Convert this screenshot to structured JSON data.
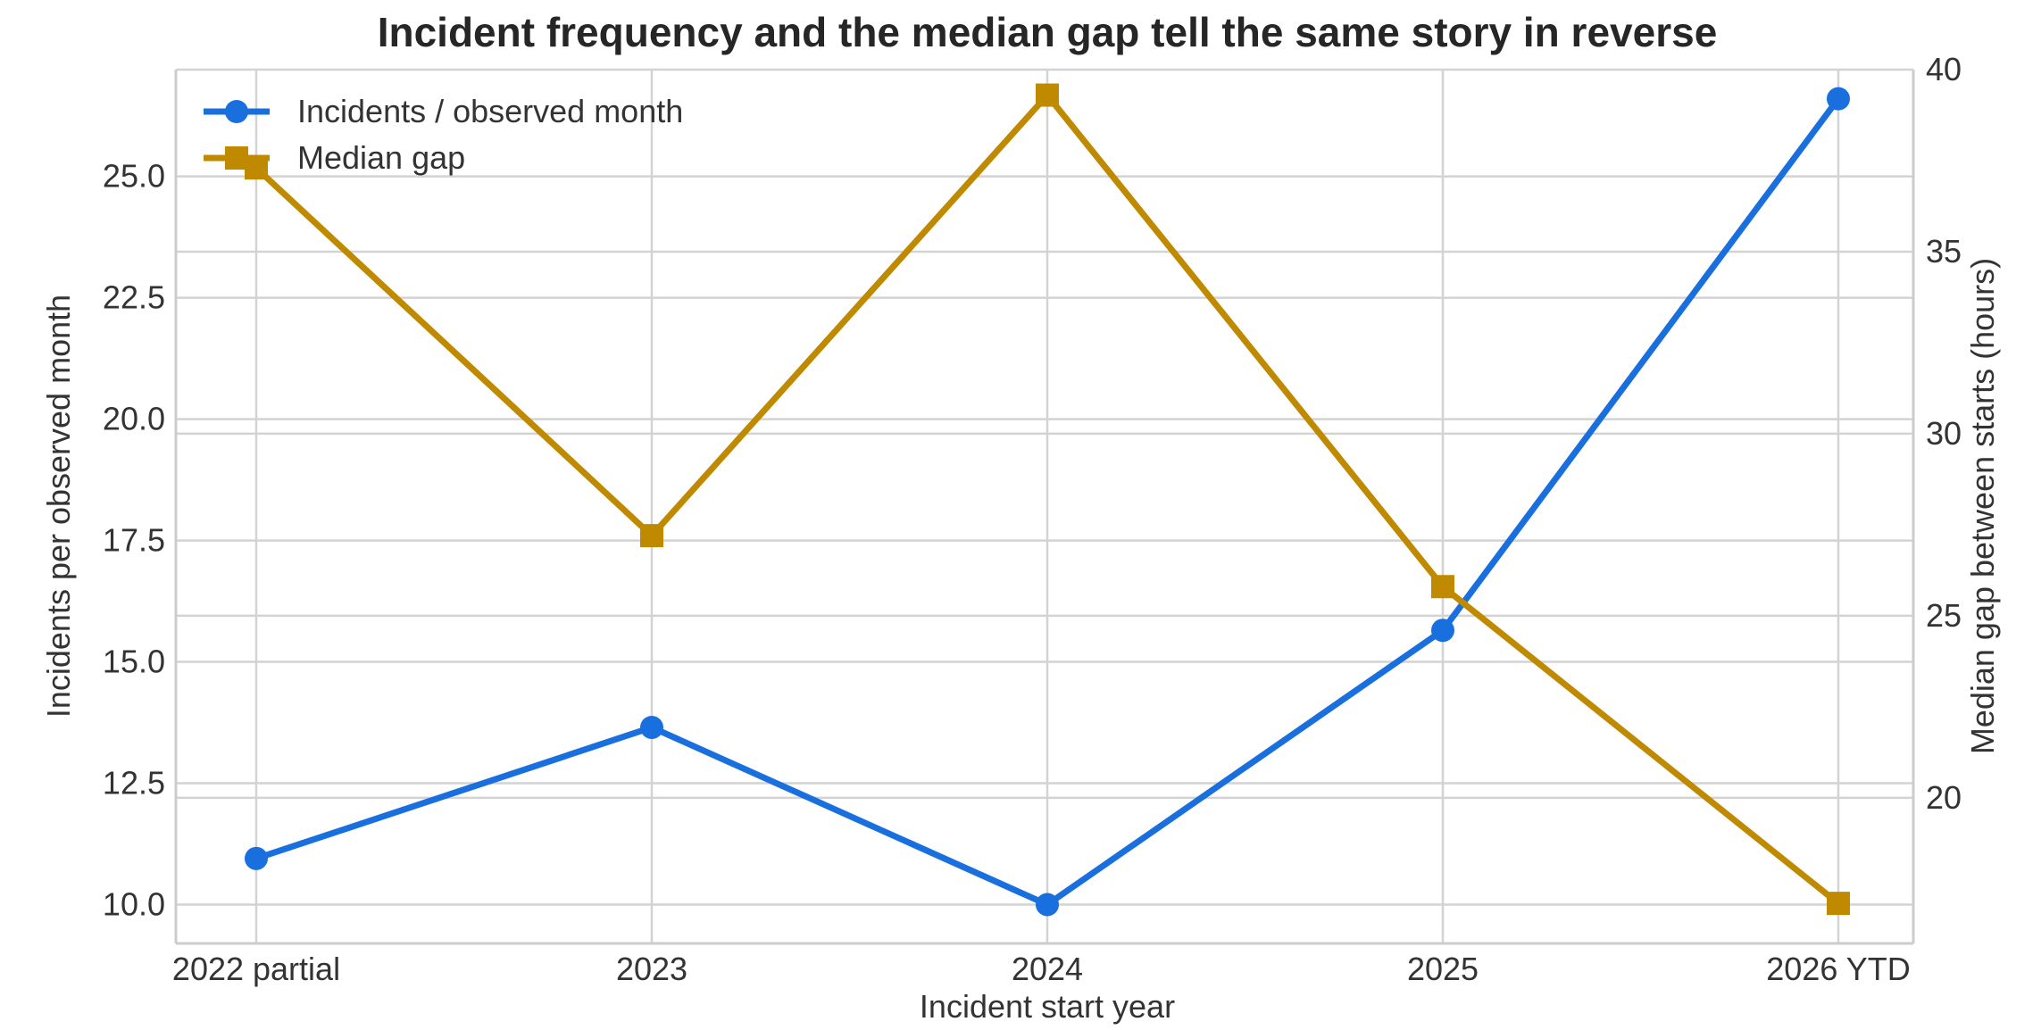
{
  "chart_data": {
    "type": "line",
    "title": "Incident frequency and the median gap tell the same story in reverse",
    "xlabel": "Incident start year",
    "ylabel_left": "Incidents per observed month",
    "ylabel_right": "Median gap between starts (hours)",
    "categories": [
      "2022 partial",
      "2023",
      "2024",
      "2025",
      "2026 YTD"
    ],
    "ylim_left": [
      9.2,
      27.2
    ],
    "yticks_left": [
      "10.0",
      "12.5",
      "15.0",
      "17.5",
      "20.0",
      "22.5",
      "25.0"
    ],
    "yticks_left_values": [
      10.0,
      12.5,
      15.0,
      17.5,
      20.0,
      22.5,
      25.0
    ],
    "ylim_right": [
      16.0,
      40.0
    ],
    "yticks_right": [
      "20",
      "25",
      "30",
      "35",
      "40"
    ],
    "yticks_right_values": [
      20,
      25,
      30,
      35,
      40
    ],
    "grid": true,
    "legend_position": "top-left",
    "series": [
      {
        "name": "Incidents / observed month",
        "axis": "left",
        "marker": "circle",
        "color": "#1a6fdf",
        "values": [
          10.95,
          13.65,
          10.0,
          15.65,
          26.6
        ]
      },
      {
        "name": "Median gap",
        "axis": "right",
        "marker": "square",
        "color": "#c08a00",
        "values": [
          37.3,
          27.2,
          39.3,
          25.8,
          17.1
        ]
      }
    ]
  }
}
